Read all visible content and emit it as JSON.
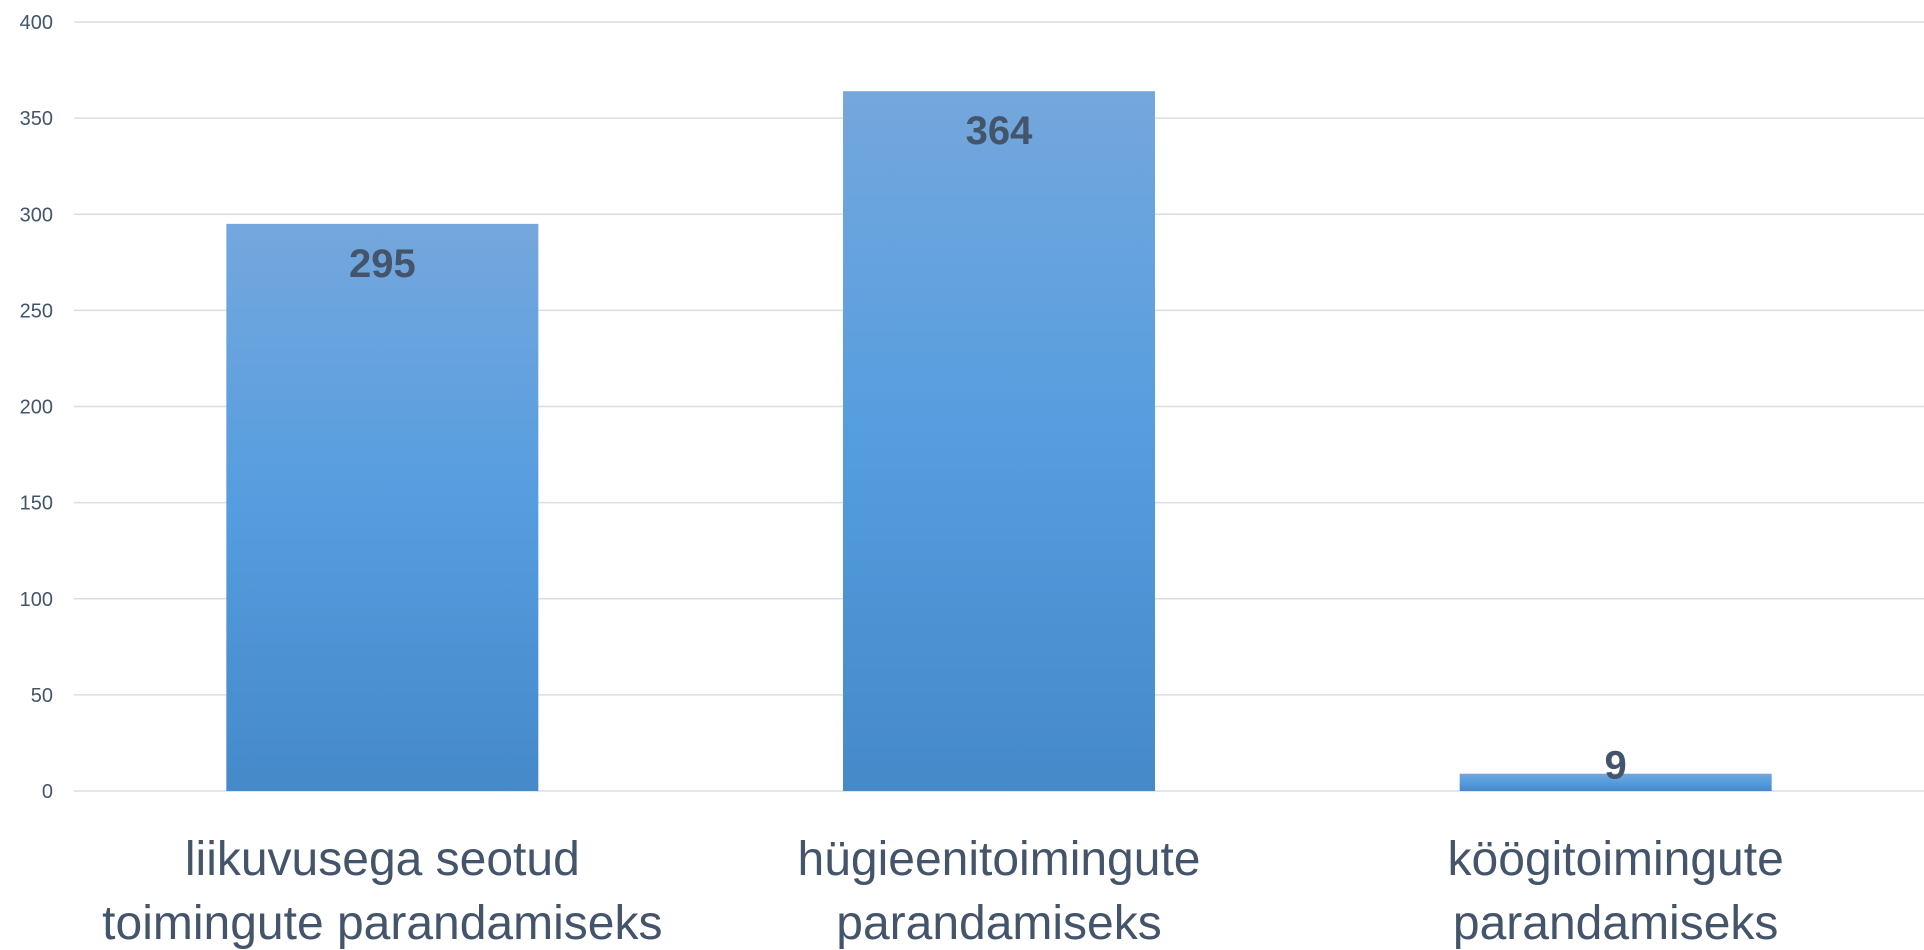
{
  "chart_data": {
    "type": "bar",
    "categories": [
      [
        "liikuvusega seotud",
        "toimingute parandamiseks"
      ],
      [
        "hügieenitoimingute",
        "parandamiseks"
      ],
      [
        "köögitoimingute",
        "parandamiseks"
      ]
    ],
    "values": [
      295,
      364,
      9
    ],
    "data_labels": [
      "295",
      "364",
      "9"
    ],
    "ylim": [
      0,
      400
    ],
    "yticks": [
      0,
      50,
      100,
      150,
      200,
      250,
      300,
      350,
      400
    ],
    "grid": true,
    "legend": "none",
    "colors": {
      "bar_top": "#74a7dd",
      "bar_mid": "#559ddf",
      "bar_bottom": "#4589c9",
      "text": "#44546a",
      "grid": "#d9dde3"
    }
  }
}
